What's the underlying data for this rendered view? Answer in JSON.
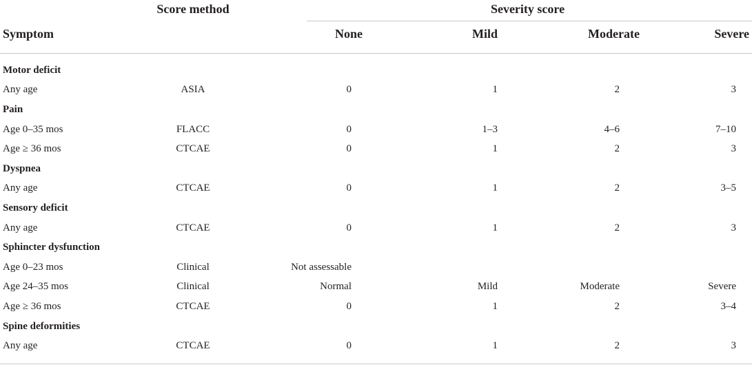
{
  "header": {
    "score_method": "Score method",
    "severity_score": "Severity score",
    "symptom": "Symptom",
    "none": "None",
    "mild": "Mild",
    "moderate": "Moderate",
    "severe": "Severe"
  },
  "sections": [
    {
      "category": "Motor deficit",
      "rows": [
        {
          "symptom": "Any age",
          "method": "ASIA",
          "none": "0",
          "mild": "1",
          "moderate": "2",
          "severe": "3"
        }
      ]
    },
    {
      "category": "Pain",
      "rows": [
        {
          "symptom": "Age 0–35 mos",
          "method": "FLACC",
          "none": "0",
          "mild": "1–3",
          "moderate": "4–6",
          "severe": "7–10"
        },
        {
          "symptom": "Age ≥ 36 mos",
          "method": "CTCAE",
          "none": "0",
          "mild": "1",
          "moderate": "2",
          "severe": "3"
        }
      ]
    },
    {
      "category": "Dyspnea",
      "rows": [
        {
          "symptom": "Any age",
          "method": "CTCAE",
          "none": "0",
          "mild": "1",
          "moderate": "2",
          "severe": "3–5"
        }
      ]
    },
    {
      "category": "Sensory deficit",
      "rows": [
        {
          "symptom": "Any age",
          "method": "CTCAE",
          "none": "0",
          "mild": "1",
          "moderate": "2",
          "severe": "3"
        }
      ]
    },
    {
      "category": "Sphincter dysfunction",
      "rows": [
        {
          "symptom": "Age 0–23 mos",
          "method": "Clinical",
          "none": "Not assessable",
          "mild": "",
          "moderate": "",
          "severe": ""
        },
        {
          "symptom": "Age 24–35 mos",
          "method": "Clinical",
          "none": "Normal",
          "mild": "Mild",
          "moderate": "Moderate",
          "severe": "Severe"
        },
        {
          "symptom": "Age ≥ 36 mos",
          "method": "CTCAE",
          "none": "0",
          "mild": "1",
          "moderate": "2",
          "severe": "3–4"
        }
      ]
    },
    {
      "category": "Spine deformities",
      "rows": [
        {
          "symptom": "Any age",
          "method": "CTCAE",
          "none": "0",
          "mild": "1",
          "moderate": "2",
          "severe": "3"
        }
      ]
    }
  ]
}
